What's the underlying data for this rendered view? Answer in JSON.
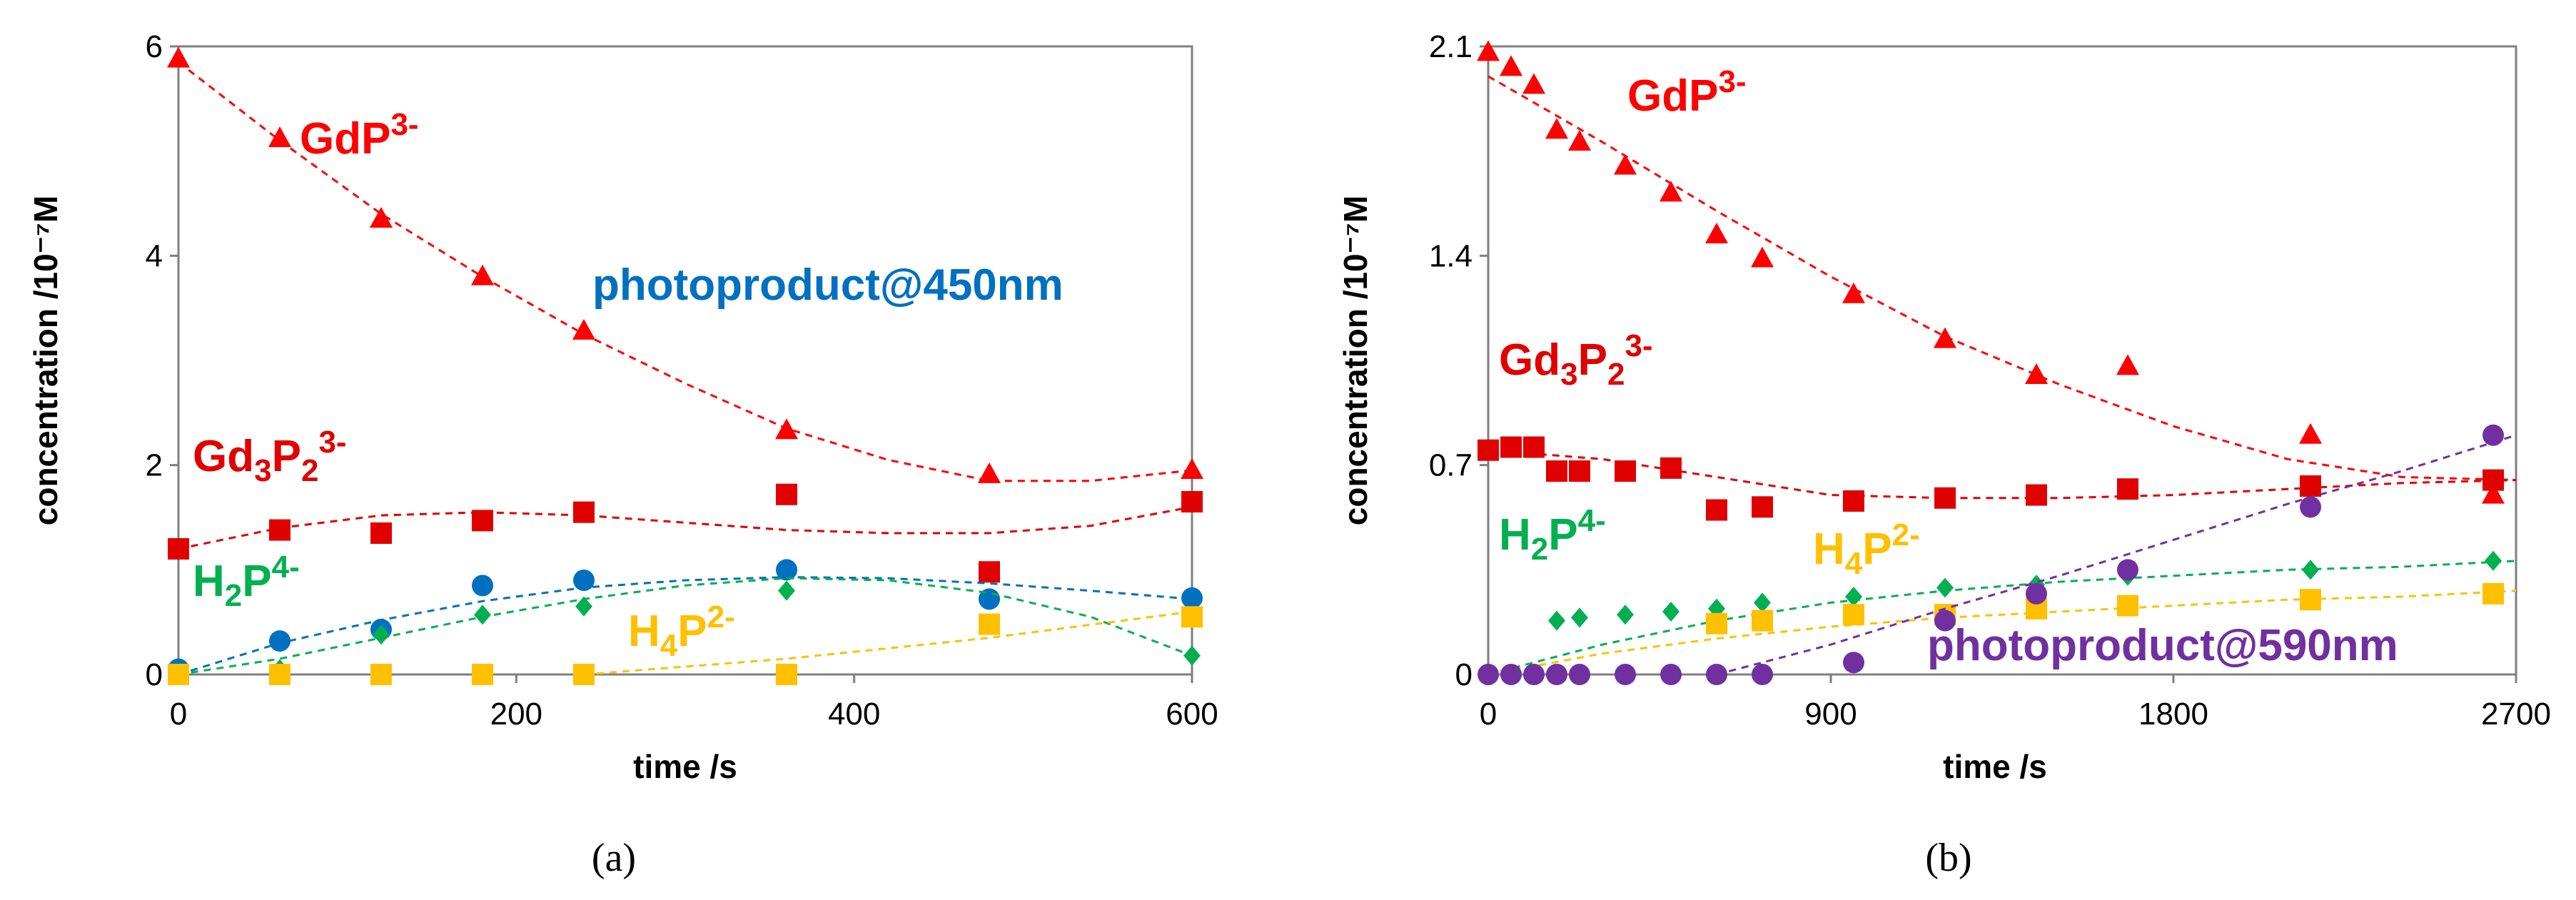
{
  "chart_data": [
    {
      "type": "scatter",
      "panel_label": "(a)",
      "xlabel": "time /s",
      "ylabel": "concentration /10⁻⁷M",
      "xlim": [
        0,
        600
      ],
      "ylim": [
        0,
        6
      ],
      "xticks": [
        0,
        200,
        400,
        600
      ],
      "yticks": [
        0,
        2,
        4,
        6
      ],
      "series": [
        {
          "name": "GdP3-",
          "label": {
            "base": "GdP",
            "sub": "",
            "sup": "3-"
          },
          "color": "#ff0000",
          "marker": "triangle",
          "x": [
            0,
            60,
            120,
            180,
            240,
            360,
            480,
            600
          ],
          "y": [
            5.88,
            5.12,
            4.35,
            3.8,
            3.28,
            2.33,
            1.91,
            1.95
          ],
          "fit_x": [
            0,
            60,
            120,
            180,
            240,
            300,
            360,
            420,
            480,
            540,
            600
          ],
          "fit_y": [
            5.85,
            5.1,
            4.4,
            3.8,
            3.25,
            2.78,
            2.35,
            2.05,
            1.85,
            1.85,
            1.95
          ]
        },
        {
          "name": "Gd3P23-",
          "label": {
            "base": "Gd",
            "sub": "3",
            "mid": "P",
            "sub2": "2",
            "sup": "3-"
          },
          "color": "#e00000",
          "marker": "square",
          "x": [
            0,
            60,
            120,
            180,
            240,
            360,
            480,
            600
          ],
          "y": [
            1.2,
            1.38,
            1.35,
            1.47,
            1.55,
            1.72,
            0.98,
            1.65
          ],
          "fit_x": [
            0,
            60,
            120,
            180,
            240,
            300,
            360,
            420,
            480,
            540,
            600
          ],
          "fit_y": [
            1.2,
            1.4,
            1.52,
            1.55,
            1.52,
            1.45,
            1.38,
            1.35,
            1.35,
            1.42,
            1.6
          ]
        },
        {
          "name": "photoproduct@450nm",
          "label": {
            "base": "photoproduct@450nm"
          },
          "color": "#0070c0",
          "marker": "circle",
          "x": [
            0,
            60,
            120,
            180,
            240,
            360,
            480,
            600
          ],
          "y": [
            0.05,
            0.32,
            0.43,
            0.85,
            0.9,
            1.0,
            0.72,
            0.73
          ],
          "fit_x": [
            0,
            60,
            120,
            180,
            240,
            300,
            360,
            420,
            480,
            540,
            600
          ],
          "fit_y": [
            0.0,
            0.3,
            0.52,
            0.7,
            0.83,
            0.9,
            0.93,
            0.92,
            0.87,
            0.8,
            0.72
          ]
        },
        {
          "name": "H2P4-",
          "label": {
            "base": "H",
            "sub": "2",
            "mid": "P",
            "sup": "4-"
          },
          "color": "#00b050",
          "marker": "diamond",
          "x": [
            0,
            60,
            120,
            180,
            240,
            360,
            600
          ],
          "y": [
            0.0,
            0.05,
            0.38,
            0.57,
            0.65,
            0.8,
            0.18
          ],
          "fit_x": [
            0,
            60,
            120,
            180,
            240,
            300,
            360,
            420,
            480,
            540,
            600
          ],
          "fit_y": [
            0.0,
            0.15,
            0.35,
            0.55,
            0.72,
            0.85,
            0.92,
            0.9,
            0.78,
            0.55,
            0.18
          ]
        },
        {
          "name": "H4P2-",
          "label": {
            "base": "H",
            "sub": "4",
            "mid": "P",
            "sup": "2-"
          },
          "color": "#ffc000",
          "marker": "square",
          "x": [
            0,
            60,
            120,
            180,
            240,
            360,
            480,
            600
          ],
          "y": [
            0.0,
            0.0,
            0.0,
            0.0,
            0.0,
            0.0,
            0.48,
            0.55
          ],
          "fit_x": [
            240,
            360,
            480,
            600
          ],
          "fit_y": [
            0.0,
            0.15,
            0.35,
            0.6
          ]
        }
      ]
    },
    {
      "type": "scatter",
      "panel_label": "(b)",
      "xlabel": "time /s",
      "ylabel": "concentration /10⁻⁷M",
      "xlim": [
        0,
        2700
      ],
      "ylim": [
        0,
        2.1
      ],
      "xticks": [
        0,
        900,
        1800,
        2700
      ],
      "yticks": [
        0,
        0.7,
        1.4,
        2.1
      ],
      "ytick_labels": [
        "0",
        "0.7",
        "1.4",
        "2.1"
      ],
      "series": [
        {
          "name": "GdP3-",
          "label": {
            "base": "GdP",
            "sub": "",
            "sup": "3-"
          },
          "color": "#ff0000",
          "marker": "triangle",
          "x": [
            0,
            60,
            120,
            180,
            240,
            360,
            480,
            600,
            720,
            960,
            1200,
            1440,
            1680,
            2160,
            2640
          ],
          "y": [
            2.08,
            2.03,
            1.97,
            1.82,
            1.78,
            1.7,
            1.61,
            1.47,
            1.39,
            1.27,
            1.12,
            1.0,
            1.03,
            0.8,
            0.6
          ],
          "fit_x": [
            0,
            300,
            600,
            900,
            1200,
            1500,
            1800,
            2100,
            2400,
            2700
          ],
          "fit_y": [
            2.0,
            1.78,
            1.55,
            1.33,
            1.13,
            0.97,
            0.83,
            0.72,
            0.66,
            0.65
          ]
        },
        {
          "name": "Gd3P23-",
          "label": {
            "base": "Gd",
            "sub": "3",
            "mid": "P",
            "sub2": "2",
            "sup": "3-"
          },
          "color": "#e00000",
          "marker": "square",
          "x": [
            0,
            60,
            120,
            180,
            240,
            360,
            480,
            600,
            720,
            960,
            1200,
            1440,
            1680,
            2160,
            2640
          ],
          "y": [
            0.75,
            0.76,
            0.76,
            0.68,
            0.68,
            0.68,
            0.69,
            0.55,
            0.56,
            0.58,
            0.59,
            0.6,
            0.62,
            0.63,
            0.65
          ],
          "fit_x": [
            0,
            300,
            600,
            900,
            1200,
            1500,
            1800,
            2100,
            2400,
            2700
          ],
          "fit_y": [
            0.75,
            0.72,
            0.66,
            0.6,
            0.59,
            0.59,
            0.6,
            0.62,
            0.64,
            0.65
          ]
        },
        {
          "name": "H2P4-",
          "label": {
            "base": "H",
            "sub": "2",
            "mid": "P",
            "sup": "4-"
          },
          "color": "#00b050",
          "marker": "diamond",
          "x": [
            0,
            60,
            120,
            180,
            240,
            360,
            480,
            600,
            720,
            960,
            1200,
            1440,
            1680,
            2160,
            2640
          ],
          "y": [
            0.0,
            0.0,
            0.0,
            0.18,
            0.19,
            0.2,
            0.21,
            0.22,
            0.24,
            0.26,
            0.29,
            0.3,
            0.33,
            0.35,
            0.38
          ],
          "fit_x": [
            0,
            300,
            600,
            900,
            1200,
            1500,
            1800,
            2100,
            2400,
            2700
          ],
          "fit_y": [
            0.0,
            0.1,
            0.18,
            0.24,
            0.28,
            0.31,
            0.33,
            0.35,
            0.36,
            0.38
          ]
        },
        {
          "name": "H4P2-",
          "label": {
            "base": "H",
            "sub": "4",
            "mid": "P",
            "sup": "2-"
          },
          "color": "#ffc000",
          "marker": "square",
          "x": [
            600,
            720,
            960,
            1200,
            1440,
            1680,
            2160,
            2640
          ],
          "y": [
            0.17,
            0.18,
            0.2,
            0.2,
            0.22,
            0.23,
            0.25,
            0.27
          ],
          "fit_x": [
            0,
            300,
            600,
            900,
            1200,
            1500,
            1800,
            2100,
            2400,
            2700
          ],
          "fit_y": [
            0.0,
            0.07,
            0.12,
            0.16,
            0.19,
            0.21,
            0.23,
            0.25,
            0.26,
            0.28
          ]
        },
        {
          "name": "photoproduct@590nm",
          "label": {
            "base": "photoproduct@590nm"
          },
          "color": "#7030a0",
          "marker": "circle",
          "x": [
            0,
            60,
            120,
            180,
            240,
            360,
            480,
            600,
            720,
            960,
            1200,
            1440,
            1680,
            2160,
            2640
          ],
          "y": [
            0.0,
            0.0,
            0.0,
            0.0,
            0.0,
            0.0,
            0.0,
            0.0,
            0.0,
            0.04,
            0.18,
            0.27,
            0.35,
            0.56,
            0.8
          ],
          "fit_x": [
            600,
            900,
            1200,
            1500,
            1800,
            2100,
            2400,
            2700
          ],
          "fit_y": [
            0.0,
            0.1,
            0.22,
            0.33,
            0.45,
            0.57,
            0.68,
            0.8
          ]
        }
      ]
    }
  ]
}
